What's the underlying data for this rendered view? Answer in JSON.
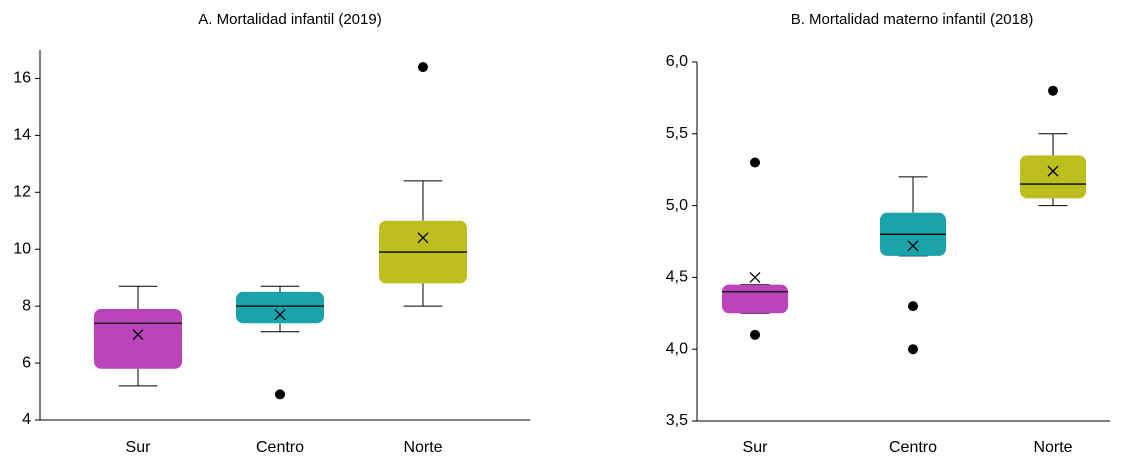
{
  "chart_data": [
    {
      "type": "box",
      "title": "A. Mortalidad infantil (2019)",
      "categories": [
        "Sur",
        "Centro",
        "Norte"
      ],
      "colors": [
        "#bb44bb",
        "#1aa3a8",
        "#bcbf1e"
      ],
      "min": [
        5.2,
        7.1,
        8.0
      ],
      "q1": [
        5.8,
        7.4,
        8.8
      ],
      "median": [
        7.4,
        8.0,
        9.9
      ],
      "q3": [
        7.9,
        8.5,
        11.0
      ],
      "max": [
        8.7,
        8.7,
        12.4
      ],
      "mean": [
        7.0,
        7.7,
        10.4
      ],
      "outliers": [
        [],
        [
          4.9
        ],
        [
          16.4
        ]
      ],
      "ylim": [
        4,
        17
      ],
      "yticks": [
        4,
        6,
        8,
        10,
        12,
        14,
        16
      ]
    },
    {
      "type": "box",
      "title": "B. Mortalidad materno infantil (2018)",
      "categories": [
        "Sur",
        "Centro",
        "Norte"
      ],
      "colors": [
        "#bb44bb",
        "#1aa3a8",
        "#bcbf1e"
      ],
      "min": [
        4.25,
        4.65,
        5.0
      ],
      "q1": [
        4.25,
        4.65,
        5.05
      ],
      "median": [
        4.4,
        4.8,
        5.15
      ],
      "q3": [
        4.45,
        4.95,
        5.35
      ],
      "max": [
        4.45,
        5.2,
        5.5
      ],
      "mean": [
        4.5,
        4.72,
        5.24
      ],
      "outliers": [
        [
          5.3,
          4.1
        ],
        [
          4.3,
          4.0
        ],
        [
          5.8
        ]
      ],
      "ylim": [
        3.5,
        6.0
      ],
      "yticks": [
        {
          "value": 3.5,
          "label": "3,5"
        },
        {
          "value": 4.0,
          "label": "4,0"
        },
        {
          "value": 4.5,
          "label": "4,5"
        },
        {
          "value": 5.0,
          "label": "5,0"
        },
        {
          "value": 5.5,
          "label": "5,5"
        },
        {
          "value": 6.0,
          "label": "6,0"
        }
      ]
    }
  ]
}
